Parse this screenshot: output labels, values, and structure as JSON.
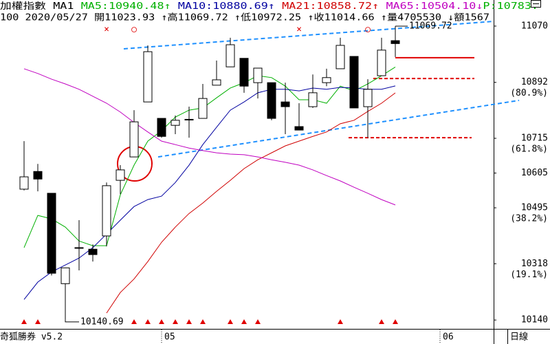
{
  "chart_data": {
    "type": "candlestick",
    "title": "加權指數",
    "indicator": "MA1",
    "price_label": "P:10783.",
    "price_color": "#00b000",
    "info_line": "100 2020/05/27 開11023.93 ↑高11069.72 ↑低10972.25 ↑收11014.66 ↑量4705530 ↓額1567",
    "footer_left": "奇狐勝券 v5.2",
    "footer_right": "日線",
    "xlim": [
      -1.6,
      34.1
    ],
    "ylim": [
      10112,
      11109
    ],
    "yticks": [
      11070,
      10892,
      10715,
      10605,
      10495,
      10318,
      10140
    ],
    "fib_ticks": [
      {
        "value": 10892,
        "label": "(80.9%)"
      },
      {
        "value": 10715,
        "label": "(61.8%)"
      },
      {
        "value": 10495,
        "label": "(38.2%)"
      },
      {
        "value": 10318,
        "label": "(19.1%)"
      }
    ],
    "xticks": [
      {
        "value": 10,
        "label": "05"
      },
      {
        "value": 30.25,
        "label": "06"
      }
    ],
    "open": [
      10554,
      10610,
      10541,
      10255,
      10369,
      10364,
      10406,
      10582,
      10656,
      10830,
      10778,
      10756,
      10774,
      10778,
      10883,
      10941,
      10968,
      10891,
      10891,
      10830,
      10752,
      10815,
      10891,
      10935,
      10974,
      10815,
      10913,
      11023.93
    ],
    "high": [
      10706,
      10634,
      10541,
      10305,
      10456,
      10379,
      10575,
      10630,
      10804,
      11009,
      10778,
      10787,
      10815,
      10887,
      10961,
      11033,
      10968,
      10937,
      10891,
      10891,
      10826,
      10917,
      10935,
      11033,
      10974,
      10902,
      11033,
      11069.72
    ],
    "low": [
      10550,
      10547,
      10281,
      10140.69,
      10297,
      10325,
      10373,
      10538,
      10656,
      10830,
      10717,
      10728,
      10717,
      10778,
      10883,
      10941,
      10859,
      10841,
      10772,
      10728,
      10741,
      10811,
      10880,
      10935,
      10811,
      10717,
      10913,
      10972.25
    ],
    "close": [
      10593,
      10586,
      10288,
      10305,
      10368,
      10347,
      10565,
      10615,
      10767,
      10989,
      10721,
      10772,
      10775,
      10841,
      10900,
      11011,
      10880,
      10937,
      10778,
      10815,
      10741,
      10859,
      10907,
      11009,
      10811,
      10870,
      10994,
      11014.66
    ],
    "up_color": "#ffffff",
    "down_color": "#000000",
    "series": [
      {
        "name": "MA5:10940.48",
        "arrow": "↑",
        "color": "#00b000",
        "values": [
          10369,
          10471,
          10460,
          10434,
          10390,
          10375,
          10375,
          10536,
          10630,
          10706,
          10739,
          10782,
          10804,
          10811,
          10843,
          10874,
          10891,
          10913,
          10907,
          10880,
          10837,
          10837,
          10826,
          10880,
          10865,
          10887,
          10913,
          10940.48
        ]
      },
      {
        "name": "MA10:10880.69",
        "arrow": "↑",
        "color": "#0000a0",
        "values": [
          10205,
          10260,
          10292,
          10314,
          10336,
          10369,
          10412,
          10456,
          10499,
          10521,
          10532,
          10575,
          10630,
          10695,
          10750,
          10804,
          10830,
          10859,
          10870,
          10870,
          10865,
          10874,
          10870,
          10876,
          10874,
          10870,
          10870,
          10880.69
        ]
      },
      {
        "name": "MA21:10858.72",
        "arrow": "↑",
        "color": "#d00000",
        "values": [
          null,
          null,
          null,
          null,
          null,
          null,
          10162,
          10227,
          10270,
          10325,
          10386,
          10434,
          10477,
          10510,
          10547,
          10582,
          10619,
          10647,
          10669,
          10691,
          10706,
          10721,
          10735,
          10761,
          10772,
          10800,
          10826,
          10858.72
        ]
      },
      {
        "name": "MA65:10504.10",
        "arrow": "↓",
        "color": "#c000c0",
        "values": [
          10935,
          10920,
          10902,
          10887,
          10870,
          10848,
          10826,
          10798,
          10765,
          10735,
          10706,
          10695,
          10684,
          10676,
          10669,
          10665,
          10663,
          10656,
          10647,
          10639,
          10630,
          10615,
          10597,
          10580,
          10560,
          10541,
          10521,
          10504.1
        ]
      }
    ],
    "trendlines": [
      {
        "x": [
          7.25,
          34.15
        ],
        "y": [
          10998,
          11085
        ],
        "color": "#1e90ff"
      },
      {
        "x": [
          9.75,
          36
        ],
        "y": [
          10656,
          10835
        ],
        "color": "#1e90ff"
      }
    ],
    "levels": [
      {
        "value": 10970,
        "from": 27,
        "to": 32.75,
        "style": "solid",
        "color": "#e00000"
      },
      {
        "value": 10904,
        "from": 25.4,
        "to": 32.75,
        "style": "dashed",
        "color": "#e00000"
      },
      {
        "value": 10717,
        "from": 23.6,
        "to": 32.55,
        "style": "dashed",
        "color": "#e00000"
      }
    ],
    "annotations": [
      {
        "label": "11069.72",
        "value": 11069.72,
        "index": 27
      },
      {
        "label": "10140.69",
        "value": 10140.69,
        "index": 3
      }
    ],
    "signals": [
      0,
      1,
      8,
      9,
      10,
      11,
      12,
      13,
      15,
      16,
      17,
      23,
      26,
      27
    ],
    "signal_color": "#e00000",
    "top_markers": [
      {
        "index": 6,
        "symbol": "×"
      },
      {
        "index": 8,
        "symbol": "○"
      },
      {
        "index": 20,
        "symbol": "×"
      },
      {
        "index": 25,
        "symbol": "○"
      }
    ],
    "marker_color": "#e00000"
  }
}
